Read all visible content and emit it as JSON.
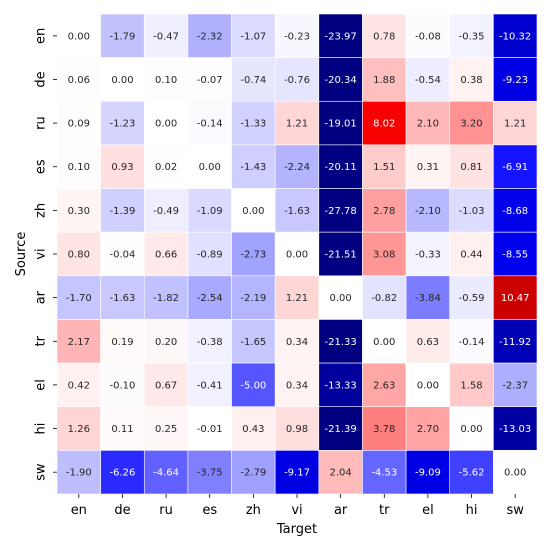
{
  "chart_data": {
    "type": "heatmap",
    "title": "",
    "xlabel": "Target",
    "ylabel": "Source",
    "x_categories": [
      "en",
      "de",
      "ru",
      "es",
      "zh",
      "vi",
      "ar",
      "tr",
      "el",
      "hi",
      "sw"
    ],
    "y_categories": [
      "en",
      "de",
      "ru",
      "es",
      "zh",
      "vi",
      "ar",
      "tr",
      "el",
      "hi",
      "sw"
    ],
    "values": [
      [
        0.0,
        -1.79,
        -0.47,
        -2.32,
        -1.07,
        -0.23,
        -23.97,
        0.78,
        -0.08,
        -0.35,
        -10.32
      ],
      [
        0.06,
        0.0,
        0.1,
        -0.07,
        -0.74,
        -0.76,
        -20.34,
        1.88,
        -0.54,
        0.38,
        -9.23
      ],
      [
        0.09,
        -1.23,
        0.0,
        -0.14,
        -1.33,
        1.21,
        -19.01,
        8.02,
        2.1,
        3.2,
        1.21
      ],
      [
        0.1,
        0.93,
        0.02,
        0.0,
        -1.43,
        -2.24,
        -20.11,
        1.51,
        0.31,
        0.81,
        -6.91
      ],
      [
        0.3,
        -1.39,
        -0.49,
        -1.09,
        0.0,
        -1.63,
        -27.78,
        2.78,
        -2.1,
        -1.03,
        -8.68
      ],
      [
        0.8,
        -0.04,
        0.66,
        -0.89,
        -2.73,
        0.0,
        -21.51,
        3.08,
        -0.33,
        0.44,
        -8.55
      ],
      [
        -1.7,
        -1.63,
        -1.82,
        -2.54,
        -2.19,
        1.21,
        0.0,
        -0.82,
        -3.84,
        -0.59,
        10.47
      ],
      [
        2.17,
        0.19,
        0.2,
        -0.38,
        -1.65,
        0.34,
        -21.33,
        0.0,
        0.63,
        -0.14,
        -11.92
      ],
      [
        0.42,
        -0.1,
        0.67,
        -0.41,
        -5.0,
        0.34,
        -13.33,
        2.63,
        0.0,
        1.58,
        -2.37
      ],
      [
        1.26,
        0.11,
        0.25,
        -0.01,
        0.43,
        0.98,
        -21.39,
        3.78,
        2.7,
        0.0,
        -13.03
      ],
      [
        -1.9,
        -6.26,
        -4.64,
        -3.75,
        -2.79,
        -9.17,
        2.04,
        -4.53,
        -9.09,
        -5.62,
        0.0
      ]
    ],
    "colormap": "bwr",
    "color_range": [
      -15,
      15
    ],
    "cell_borders": "white",
    "grid": false,
    "legend": "none"
  }
}
